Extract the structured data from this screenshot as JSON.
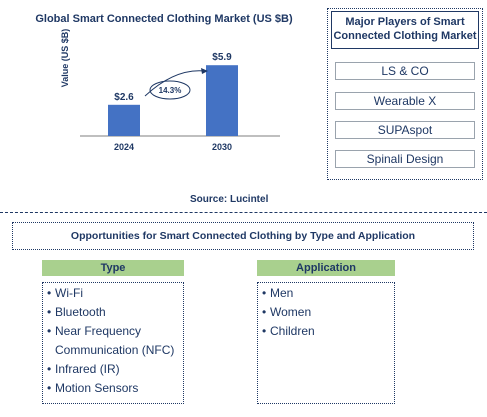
{
  "chart_data": {
    "type": "bar",
    "title": "Global Smart Connected Clothing Market (US $B)",
    "ylabel": "Value (US $B)",
    "categories": [
      "2024",
      "2030"
    ],
    "values": [
      2.6,
      5.9
    ],
    "value_labels": [
      "$2.6",
      "$5.9"
    ],
    "annotation": "14.3%",
    "bar_color": "#4472c4",
    "ylim": [
      0,
      6.5
    ],
    "source": "Source: Lucintel"
  },
  "players": {
    "title": "Major Players of Smart Connected Clothing Market",
    "items": [
      "LS & CO",
      "Wearable X",
      "SUPAspot",
      "Spinali Design"
    ]
  },
  "opportunities": {
    "title": "Opportunities for Smart Connected Clothing by Type and Application",
    "type_header": "Type",
    "type_items": [
      "Wi-Fi",
      "Bluetooth",
      "Near Frequency",
      "Communication (NFC)",
      "Infrared (IR)",
      "Motion Sensors"
    ],
    "application_header": "Application",
    "application_items": [
      "Men",
      "Women",
      "Children"
    ]
  },
  "colors": {
    "accent": "#1f3864",
    "bar": "#4472c4",
    "header_bg": "#a9d08e"
  }
}
